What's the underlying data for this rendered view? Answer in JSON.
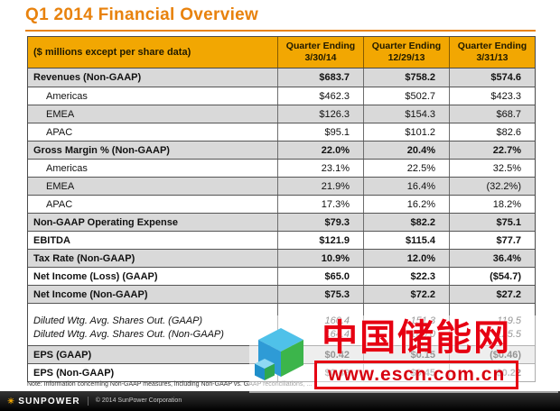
{
  "slide": {
    "title": "Q1 2014 Financial Overview",
    "note": "Note: Information concerning Non-GAAP measures, including Non-GAAP vs. GAAP reconciliations, ...",
    "footer": {
      "logo": "SUNPOWER",
      "copyright": "© 2014 SunPower Corporation"
    }
  },
  "table": {
    "unit_label": "($ millions except per share data)",
    "columns": [
      {
        "title": "Quarter Ending",
        "date": "3/30/14"
      },
      {
        "title": "Quarter Ending",
        "date": "12/29/13"
      },
      {
        "title": "Quarter Ending",
        "date": "3/31/13"
      }
    ],
    "rows": [
      {
        "label": "Revenues (Non-GAAP)",
        "values": [
          "$683.7",
          "$758.2",
          "$574.6"
        ],
        "bold": true,
        "shade": true
      },
      {
        "label": "Americas",
        "values": [
          "$462.3",
          "$502.7",
          "$423.3"
        ],
        "indent": true
      },
      {
        "label": "EMEA",
        "values": [
          "$126.3",
          "$154.3",
          "$68.7"
        ],
        "indent": true,
        "shade": true
      },
      {
        "label": "APAC",
        "values": [
          "$95.1",
          "$101.2",
          "$82.6"
        ],
        "indent": true
      },
      {
        "label": "Gross Margin % (Non-GAAP)",
        "values": [
          "22.0%",
          "20.4%",
          "22.7%"
        ],
        "bold": true,
        "shade": true
      },
      {
        "label": "Americas",
        "values": [
          "23.1%",
          "22.5%",
          "32.5%"
        ],
        "indent": true
      },
      {
        "label": "EMEA",
        "values": [
          "21.9%",
          "16.4%",
          "(32.2%)"
        ],
        "indent": true,
        "shade": true
      },
      {
        "label": "APAC",
        "values": [
          "17.3%",
          "16.2%",
          "18.2%"
        ],
        "indent": true
      },
      {
        "label": "Non-GAAP Operating Expense",
        "values": [
          "$79.3",
          "$82.2",
          "$75.1"
        ],
        "bold": true,
        "shade": true
      },
      {
        "label": "EBITDA",
        "values": [
          "$121.9",
          "$115.4",
          "$77.7"
        ],
        "bold": true
      },
      {
        "label": "Tax Rate (Non-GAAP)",
        "values": [
          "10.9%",
          "12.0%",
          "36.4%"
        ],
        "bold": true,
        "shade": true
      },
      {
        "label": "Net Income (Loss) (GAAP)",
        "values": [
          "$65.0",
          "$22.3",
          "($54.7)"
        ],
        "bold": true
      },
      {
        "label": "Net Income (Non-GAAP)",
        "values": [
          "$75.3",
          "$72.2",
          "$27.2"
        ],
        "bold": true,
        "shade": true
      },
      {
        "label": "Diluted Wtg. Avg. Shares Out. (GAAP)",
        "values": [
          "160.4",
          "151.3",
          "119.5"
        ],
        "italic": true,
        "gapTop": true
      },
      {
        "label": "Diluted Wtg. Avg. Shares Out. (Non-GAAP)",
        "values": [
          "164.4",
          "160.0",
          "125.5"
        ],
        "italic": true,
        "noBorder": true
      },
      {
        "label": "EPS  (GAAP)",
        "values": [
          "$0.42",
          "$0.15",
          "($0.46)"
        ],
        "bold": true,
        "shade": true
      },
      {
        "label": "EPS  (Non-GAAP)",
        "values": [
          "$0.49",
          "$0.45",
          "$0.22"
        ],
        "bold": true
      }
    ]
  },
  "watermark": {
    "text": "中国储能网",
    "url": "www.escn.com.cn"
  },
  "colors": {
    "accent_orange": "#E8820D",
    "header_gold": "#F2A702",
    "row_shade": "#D9D9D9",
    "watermark_red": "#E60012",
    "footer_black": "#000000"
  }
}
